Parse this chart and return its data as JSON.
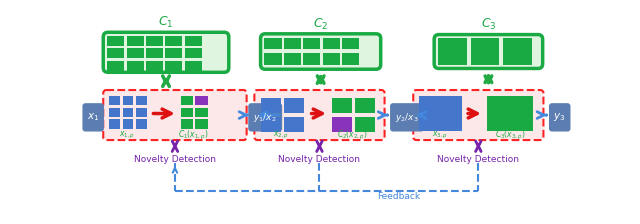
{
  "bg_color": "#ffffff",
  "blue_box_color": "#5b7db1",
  "pink_box_color": "#fce8e8",
  "red_dashed_color": "#ff2222",
  "green_cell_color": "#1aaa44",
  "blue_cell_color": "#4477cc",
  "purple_cell_color": "#8833bb",
  "green_top_bg": "#e0f5e0",
  "green_arrow_color": "#22aa44",
  "red_arrow_color": "#dd1111",
  "blue_arrow_color": "#4488dd",
  "purple_arrow_color": "#7722aa",
  "novelty_text": "Novelty Detection",
  "feedback_text": "Feedback"
}
